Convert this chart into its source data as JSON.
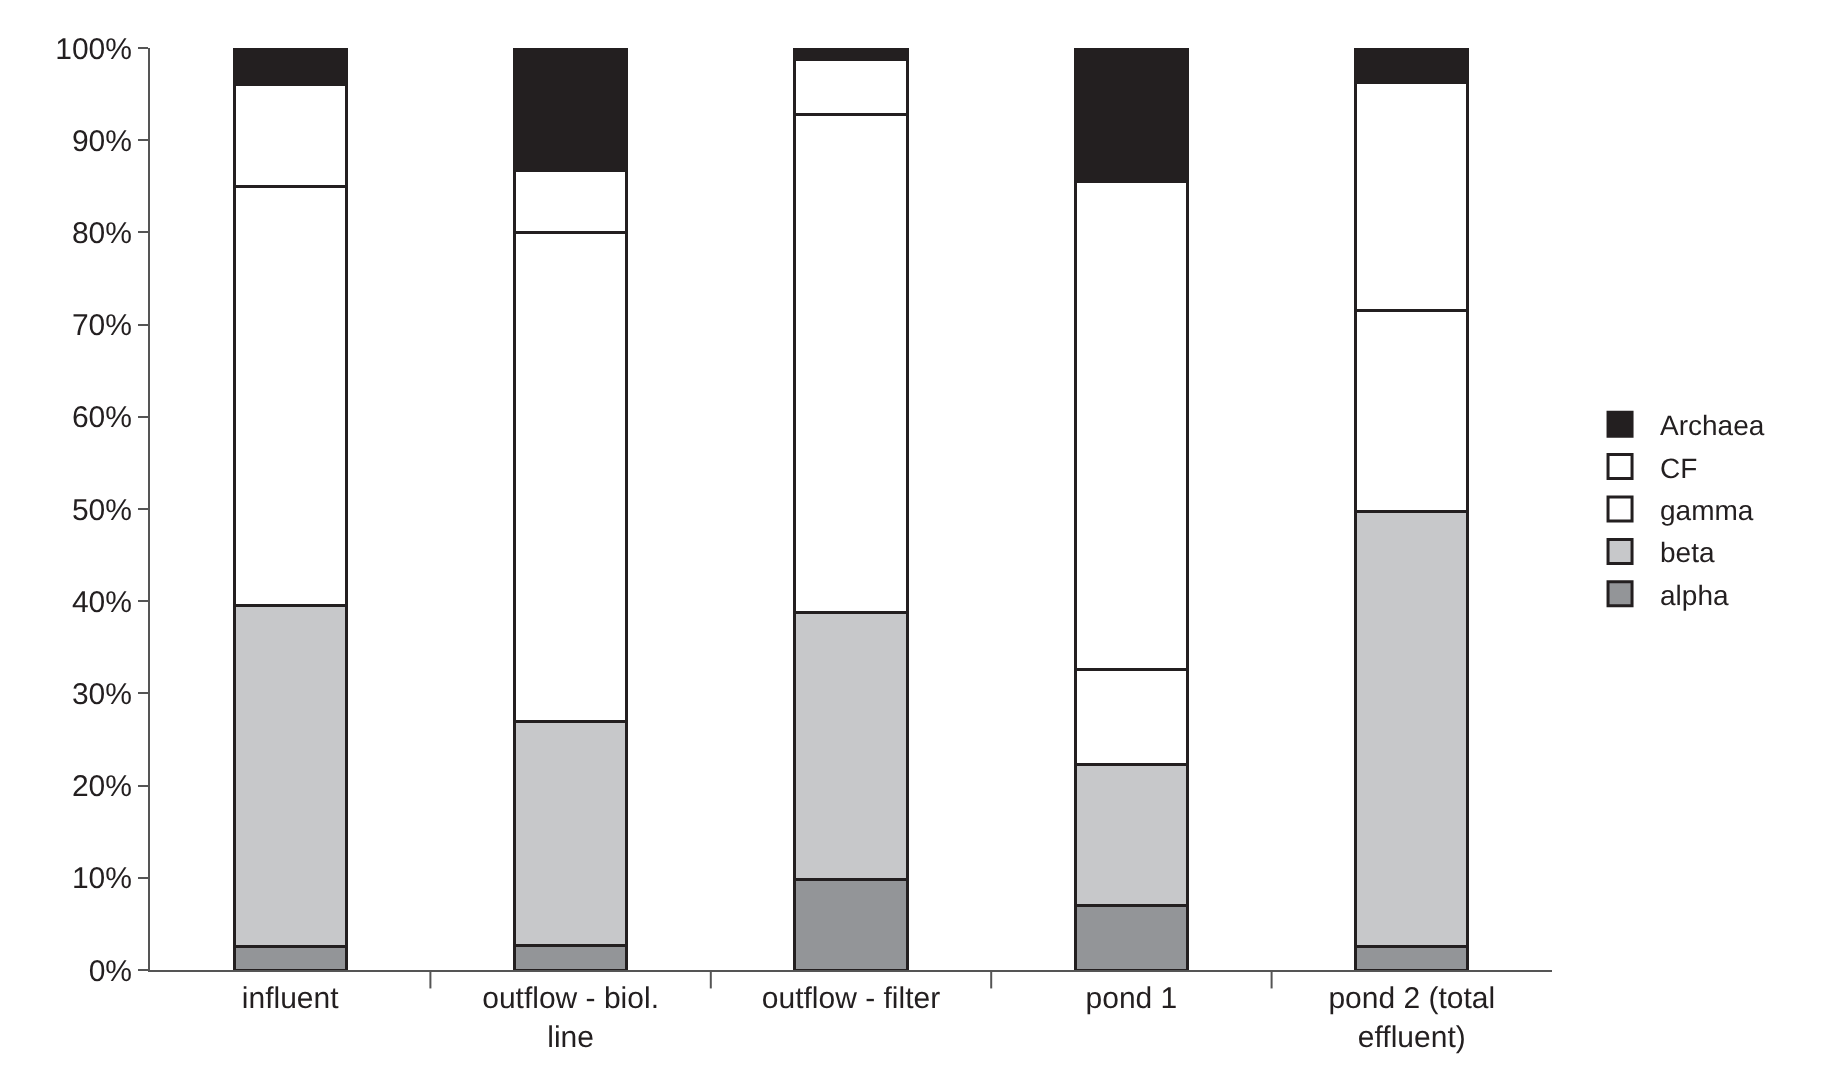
{
  "chart_data": {
    "type": "bar",
    "stacked": true,
    "categories": [
      "influent",
      "outflow - biol. line",
      "outflow - filter",
      "pond 1",
      "pond 2 (total effluent)"
    ],
    "series": [
      {
        "name": "alpha",
        "color": "#939598",
        "values": [
          2.5,
          2.7,
          9.8,
          7,
          2.5
        ]
      },
      {
        "name": "beta",
        "color": "#c7c8ca",
        "values": [
          37,
          24.3,
          29,
          15.3,
          47.2
        ]
      },
      {
        "name": "gamma",
        "color": "#ffffff",
        "values": [
          45.5,
          53,
          54,
          10.3,
          21.8
        ]
      },
      {
        "name": "CF",
        "color": "#ffffff",
        "values": [
          11,
          6.7,
          6,
          52.9,
          24.8
        ]
      },
      {
        "name": "Archaea",
        "color": "#231f20",
        "values": [
          4,
          13.3,
          1.2,
          14.5,
          3.7
        ]
      }
    ],
    "ylim": [
      0,
      100
    ],
    "yticks": [
      {
        "value": 0,
        "label": "0%"
      },
      {
        "value": 10,
        "label": "10%"
      },
      {
        "value": 20,
        "label": "20%"
      },
      {
        "value": 30,
        "label": "30%"
      },
      {
        "value": 40,
        "label": "40%"
      },
      {
        "value": 50,
        "label": "50%"
      },
      {
        "value": 60,
        "label": "60%"
      },
      {
        "value": 70,
        "label": "70%"
      },
      {
        "value": 80,
        "label": "80%"
      },
      {
        "value": 90,
        "label": "90%"
      },
      {
        "value": 100,
        "label": "100%"
      }
    ],
    "legend": "right"
  }
}
